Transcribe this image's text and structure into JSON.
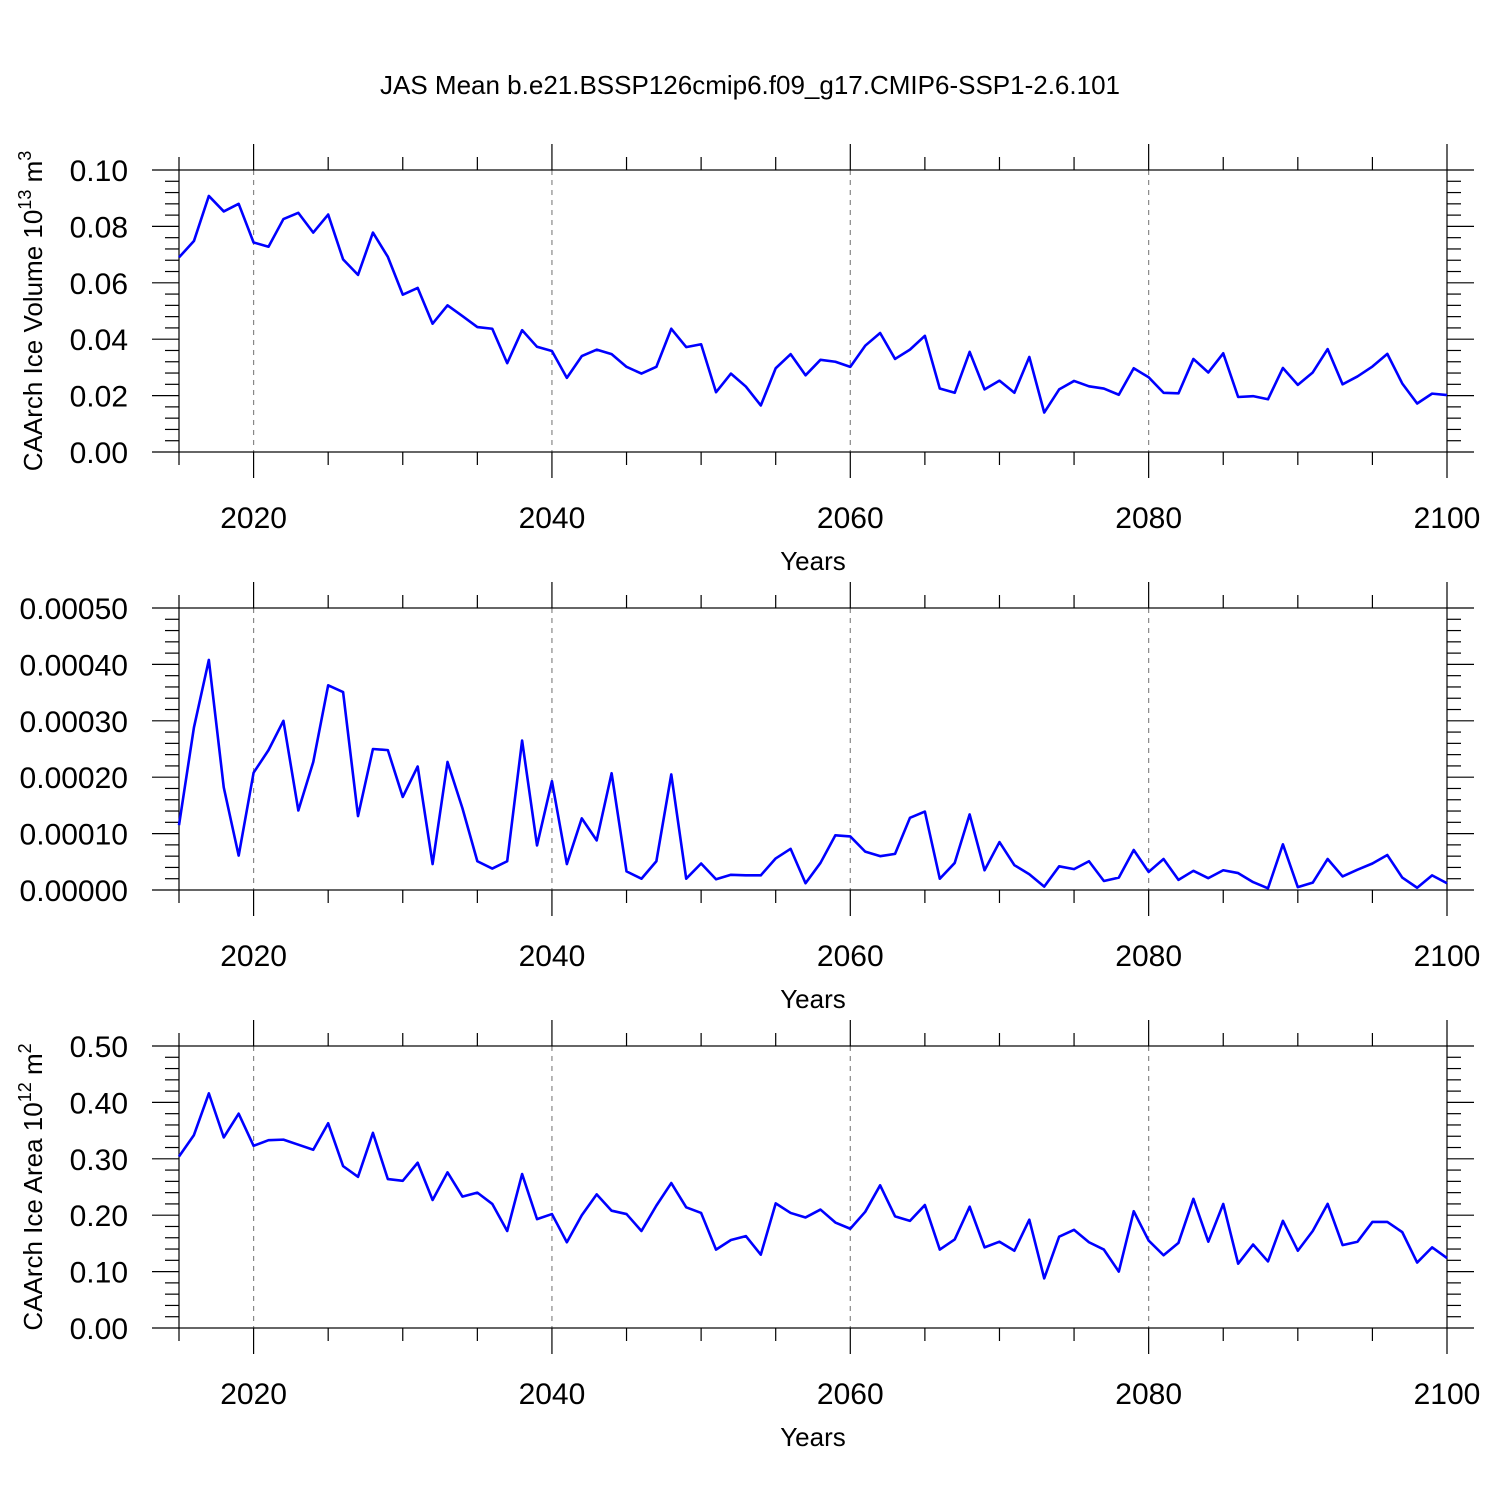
{
  "title": "JAS Mean b.e21.BSSP126cmip6.f09_g17.CMIP6-SSP1-2.6.101",
  "chart_data": [
    {
      "type": "line",
      "ylabel_base": "CAArch Ice Volume 10",
      "ylabel_exp": "13",
      "ylabel_unit": " m",
      "ylabel_unit_exp": "3",
      "xlabel": "Years",
      "x_start": 2015,
      "xlim": [
        2015,
        2100
      ],
      "x_ticks": [
        "2020",
        "2040",
        "2060",
        "2080",
        "2100"
      ],
      "x_tick_values": [
        2020,
        2040,
        2060,
        2080,
        2100
      ],
      "ylim": [
        0,
        0.1
      ],
      "y_ticks": [
        "0.00",
        "0.02",
        "0.04",
        "0.06",
        "0.08",
        "0.10"
      ],
      "y_tick_values": [
        0,
        0.02,
        0.04,
        0.06,
        0.08,
        0.1
      ],
      "values": [
        0.069,
        0.0748,
        0.0908,
        0.0853,
        0.088,
        0.0743,
        0.0728,
        0.0826,
        0.0848,
        0.0778,
        0.0842,
        0.0683,
        0.0628,
        0.0778,
        0.0692,
        0.0558,
        0.0582,
        0.0455,
        0.052,
        0.0482,
        0.0443,
        0.0437,
        0.0315,
        0.0432,
        0.0373,
        0.0358,
        0.0263,
        0.034,
        0.0363,
        0.0347,
        0.0302,
        0.0278,
        0.0302,
        0.0437,
        0.0372,
        0.0382,
        0.0212,
        0.0278,
        0.0232,
        0.0165,
        0.0297,
        0.0347,
        0.0272,
        0.0327,
        0.032,
        0.0302,
        0.0377,
        0.0422,
        0.033,
        0.0363,
        0.0412,
        0.0225,
        0.021,
        0.0355,
        0.0222,
        0.0253,
        0.021,
        0.0337,
        0.014,
        0.0222,
        0.0252,
        0.0233,
        0.0225,
        0.0203,
        0.0297,
        0.0265,
        0.021,
        0.0208,
        0.033,
        0.0282,
        0.035,
        0.0195,
        0.0198,
        0.0187,
        0.0298,
        0.0238,
        0.0282,
        0.0365,
        0.024,
        0.0268,
        0.0303,
        0.0348,
        0.0243,
        0.0172,
        0.0207,
        0.0202
      ]
    },
    {
      "type": "line",
      "xlabel": "Years",
      "x_start": 2015,
      "xlim": [
        2015,
        2100
      ],
      "x_ticks": [
        "2020",
        "2040",
        "2060",
        "2080",
        "2100"
      ],
      "x_tick_values": [
        2020,
        2040,
        2060,
        2080,
        2100
      ],
      "ylim": [
        0,
        0.0005
      ],
      "y_ticks": [
        "0.00000",
        "0.00010",
        "0.00020",
        "0.00030",
        "0.00040",
        "0.00050"
      ],
      "y_tick_values": [
        0,
        0.0001,
        0.0002,
        0.0003,
        0.0004,
        0.0005
      ],
      "values": [
        0.000115,
        0.000288,
        0.000408,
        0.000182,
        6.1e-05,
        0.000208,
        0.000248,
        0.0003,
        0.000141,
        0.000227,
        0.000363,
        0.000351,
        0.000131,
        0.00025,
        0.000248,
        0.000165,
        0.000219,
        4.6e-05,
        0.000227,
        0.000145,
        5.1e-05,
        3.8e-05,
        5.1e-05,
        0.000265,
        7.9e-05,
        0.000193,
        4.6e-05,
        0.000127,
        8.8e-05,
        0.000207,
        3.3e-05,
        2e-05,
        5.1e-05,
        0.000205,
        2e-05,
        4.7e-05,
        1.9e-05,
        2.7e-05,
        2.6e-05,
        2.6e-05,
        5.6e-05,
        7.3e-05,
        1.2e-05,
        4.8e-05,
        9.7e-05,
        9.5e-05,
        6.8e-05,
        6e-05,
        6.4e-05,
        0.000128,
        0.000139,
        2e-05,
        4.8e-05,
        0.000134,
        3.5e-05,
        8.5e-05,
        4.4e-05,
        2.8e-05,
        6e-06,
        4.2e-05,
        3.7e-05,
        5.1e-05,
        1.6e-05,
        2.2e-05,
        7.1e-05,
        3.2e-05,
        5.5e-05,
        1.8e-05,
        3.4e-05,
        2.1e-05,
        3.5e-05,
        3e-05,
        1.4e-05,
        3e-06,
        8.1e-05,
        5e-06,
        1.3e-05,
        5.5e-05,
        2.4e-05,
        3.6e-05,
        4.7e-05,
        6.2e-05,
        2.2e-05,
        4e-06,
        2.6e-05,
        1.2e-05
      ]
    },
    {
      "type": "line",
      "ylabel_base": "CAArch Ice Area 10",
      "ylabel_exp": "12",
      "ylabel_unit": " m",
      "ylabel_unit_exp": "2",
      "xlabel": "Years",
      "x_start": 2015,
      "xlim": [
        2015,
        2100
      ],
      "x_ticks": [
        "2020",
        "2040",
        "2060",
        "2080",
        "2100"
      ],
      "x_tick_values": [
        2020,
        2040,
        2060,
        2080,
        2100
      ],
      "ylim": [
        0,
        0.5
      ],
      "y_ticks": [
        "0.00",
        "0.10",
        "0.20",
        "0.30",
        "0.40",
        "0.50"
      ],
      "y_tick_values": [
        0,
        0.1,
        0.2,
        0.3,
        0.4,
        0.5
      ],
      "values": [
        0.304,
        0.342,
        0.416,
        0.338,
        0.38,
        0.323,
        0.333,
        0.334,
        0.325,
        0.316,
        0.363,
        0.287,
        0.268,
        0.346,
        0.264,
        0.261,
        0.293,
        0.227,
        0.276,
        0.233,
        0.24,
        0.22,
        0.172,
        0.273,
        0.193,
        0.202,
        0.152,
        0.2,
        0.237,
        0.208,
        0.202,
        0.172,
        0.217,
        0.257,
        0.214,
        0.204,
        0.139,
        0.156,
        0.163,
        0.13,
        0.221,
        0.204,
        0.196,
        0.21,
        0.187,
        0.176,
        0.206,
        0.253,
        0.198,
        0.19,
        0.218,
        0.139,
        0.157,
        0.215,
        0.143,
        0.153,
        0.137,
        0.192,
        0.088,
        0.162,
        0.174,
        0.152,
        0.139,
        0.1,
        0.207,
        0.155,
        0.129,
        0.151,
        0.229,
        0.153,
        0.22,
        0.114,
        0.148,
        0.118,
        0.19,
        0.137,
        0.172,
        0.22,
        0.147,
        0.153,
        0.188,
        0.188,
        0.17,
        0.116,
        0.143,
        0.124
      ]
    }
  ],
  "colors": {
    "line": "#0000ff",
    "axis": "#000000",
    "grid": "#888888"
  }
}
